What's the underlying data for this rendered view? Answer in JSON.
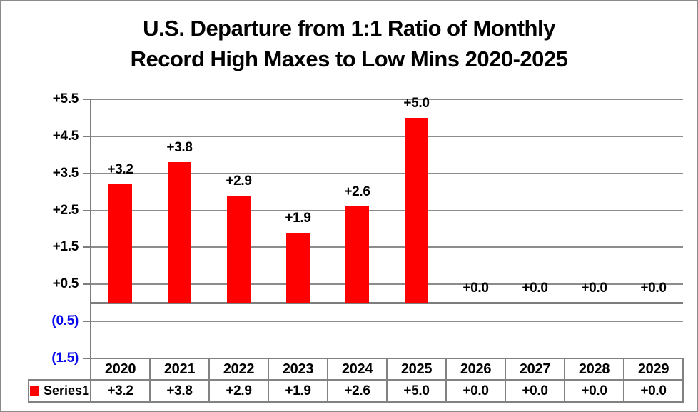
{
  "title": {
    "line1": "U.S. Departure from 1:1 Ratio of Monthly",
    "line2": "Record High Maxes to Low Mins 2020-2025"
  },
  "legend": {
    "label": "Series1",
    "swatch": "red-square-icon"
  },
  "colors": {
    "bar": "#ff0000",
    "gridline": "#8c8c8c",
    "axis": "#7d7d7d",
    "table_border": "#828282",
    "positive_label": "#000000",
    "negative_label": "#0909ee",
    "frame_border": "#8a8a8a",
    "background": "#ffffff"
  },
  "chart_data": {
    "type": "bar",
    "title": "U.S. Departure from 1:1 Ratio of Monthly Record High Maxes to Low Mins 2020-2025",
    "categories": [
      "2020",
      "2021",
      "2022",
      "2023",
      "2024",
      "2025",
      "2026",
      "2027",
      "2028",
      "2029"
    ],
    "series": [
      {
        "name": "Series1",
        "values": [
          3.2,
          3.8,
          2.9,
          1.9,
          2.6,
          5.0,
          0.0,
          0.0,
          0.0,
          0.0
        ]
      }
    ],
    "data_labels": [
      "+3.2",
      "+3.8",
      "+2.9",
      "+1.9",
      "+2.6",
      "+5.0",
      "+0.0",
      "+0.0",
      "+0.0",
      "+0.0"
    ],
    "xlabel": "",
    "ylabel": "",
    "ylim": [
      -1.5,
      5.5
    ],
    "y_major_unit": 1.0,
    "y_ticks": [
      {
        "value": 5.5,
        "label": "+5.5",
        "negative": false
      },
      {
        "value": 4.5,
        "label": "+4.5",
        "negative": false
      },
      {
        "value": 3.5,
        "label": "+3.5",
        "negative": false
      },
      {
        "value": 2.5,
        "label": "+2.5",
        "negative": false
      },
      {
        "value": 1.5,
        "label": "+1.5",
        "negative": false
      },
      {
        "value": 0.5,
        "label": "+0.5",
        "negative": false
      },
      {
        "value": -0.5,
        "label": "(0.5)",
        "negative": true
      },
      {
        "value": -1.5,
        "label": "(1.5)",
        "negative": true
      }
    ],
    "grid": true,
    "legend_position": "bottom-left",
    "data_table_shown": true,
    "table": {
      "header_row": [
        "2020",
        "2021",
        "2022",
        "2023",
        "2024",
        "2025",
        "2026",
        "2027",
        "2028",
        "2029"
      ],
      "rows": [
        {
          "name": "Series1",
          "values": [
            "+3.2",
            "+3.8",
            "+2.9",
            "+1.9",
            "+2.6",
            "+5.0",
            "+0.0",
            "+0.0",
            "+0.0",
            "+0.0"
          ]
        }
      ]
    }
  }
}
